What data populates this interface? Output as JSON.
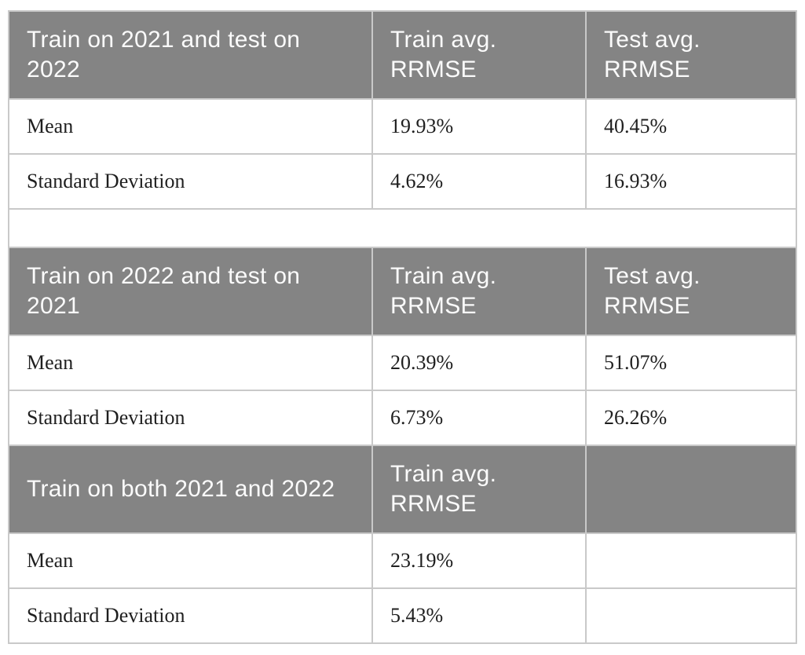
{
  "style": {
    "header_bg": "#848484",
    "header_text_color": "#fbfbfb",
    "body_text_color": "#1f1f1f",
    "border_color": "#c9c9c9",
    "page_bg": "#ffffff"
  },
  "tables": [
    {
      "title": "Train on 2021 and test on 2022",
      "columns": [
        "Train avg. RRMSE",
        "Test avg. RRMSE"
      ],
      "rows": [
        {
          "label": "Mean",
          "values": [
            "19.93%",
            "40.45%"
          ]
        },
        {
          "label": "Standard Deviation",
          "values": [
            "4.62%",
            "16.93%"
          ]
        }
      ]
    },
    {
      "title": "Train on 2022 and test on 2021",
      "columns": [
        "Train avg. RRMSE",
        "Test avg. RRMSE"
      ],
      "rows": [
        {
          "label": "Mean",
          "values": [
            "20.39%",
            "51.07%"
          ]
        },
        {
          "label": "Standard Deviation",
          "values": [
            "6.73%",
            "26.26%"
          ]
        }
      ]
    },
    {
      "title": "Train on both 2021 and 2022",
      "columns": [
        "Train avg. RRMSE",
        ""
      ],
      "rows": [
        {
          "label": "Mean",
          "values": [
            "23.19%",
            ""
          ]
        },
        {
          "label": "Standard Deviation",
          "values": [
            "5.43%",
            ""
          ]
        }
      ]
    }
  ]
}
